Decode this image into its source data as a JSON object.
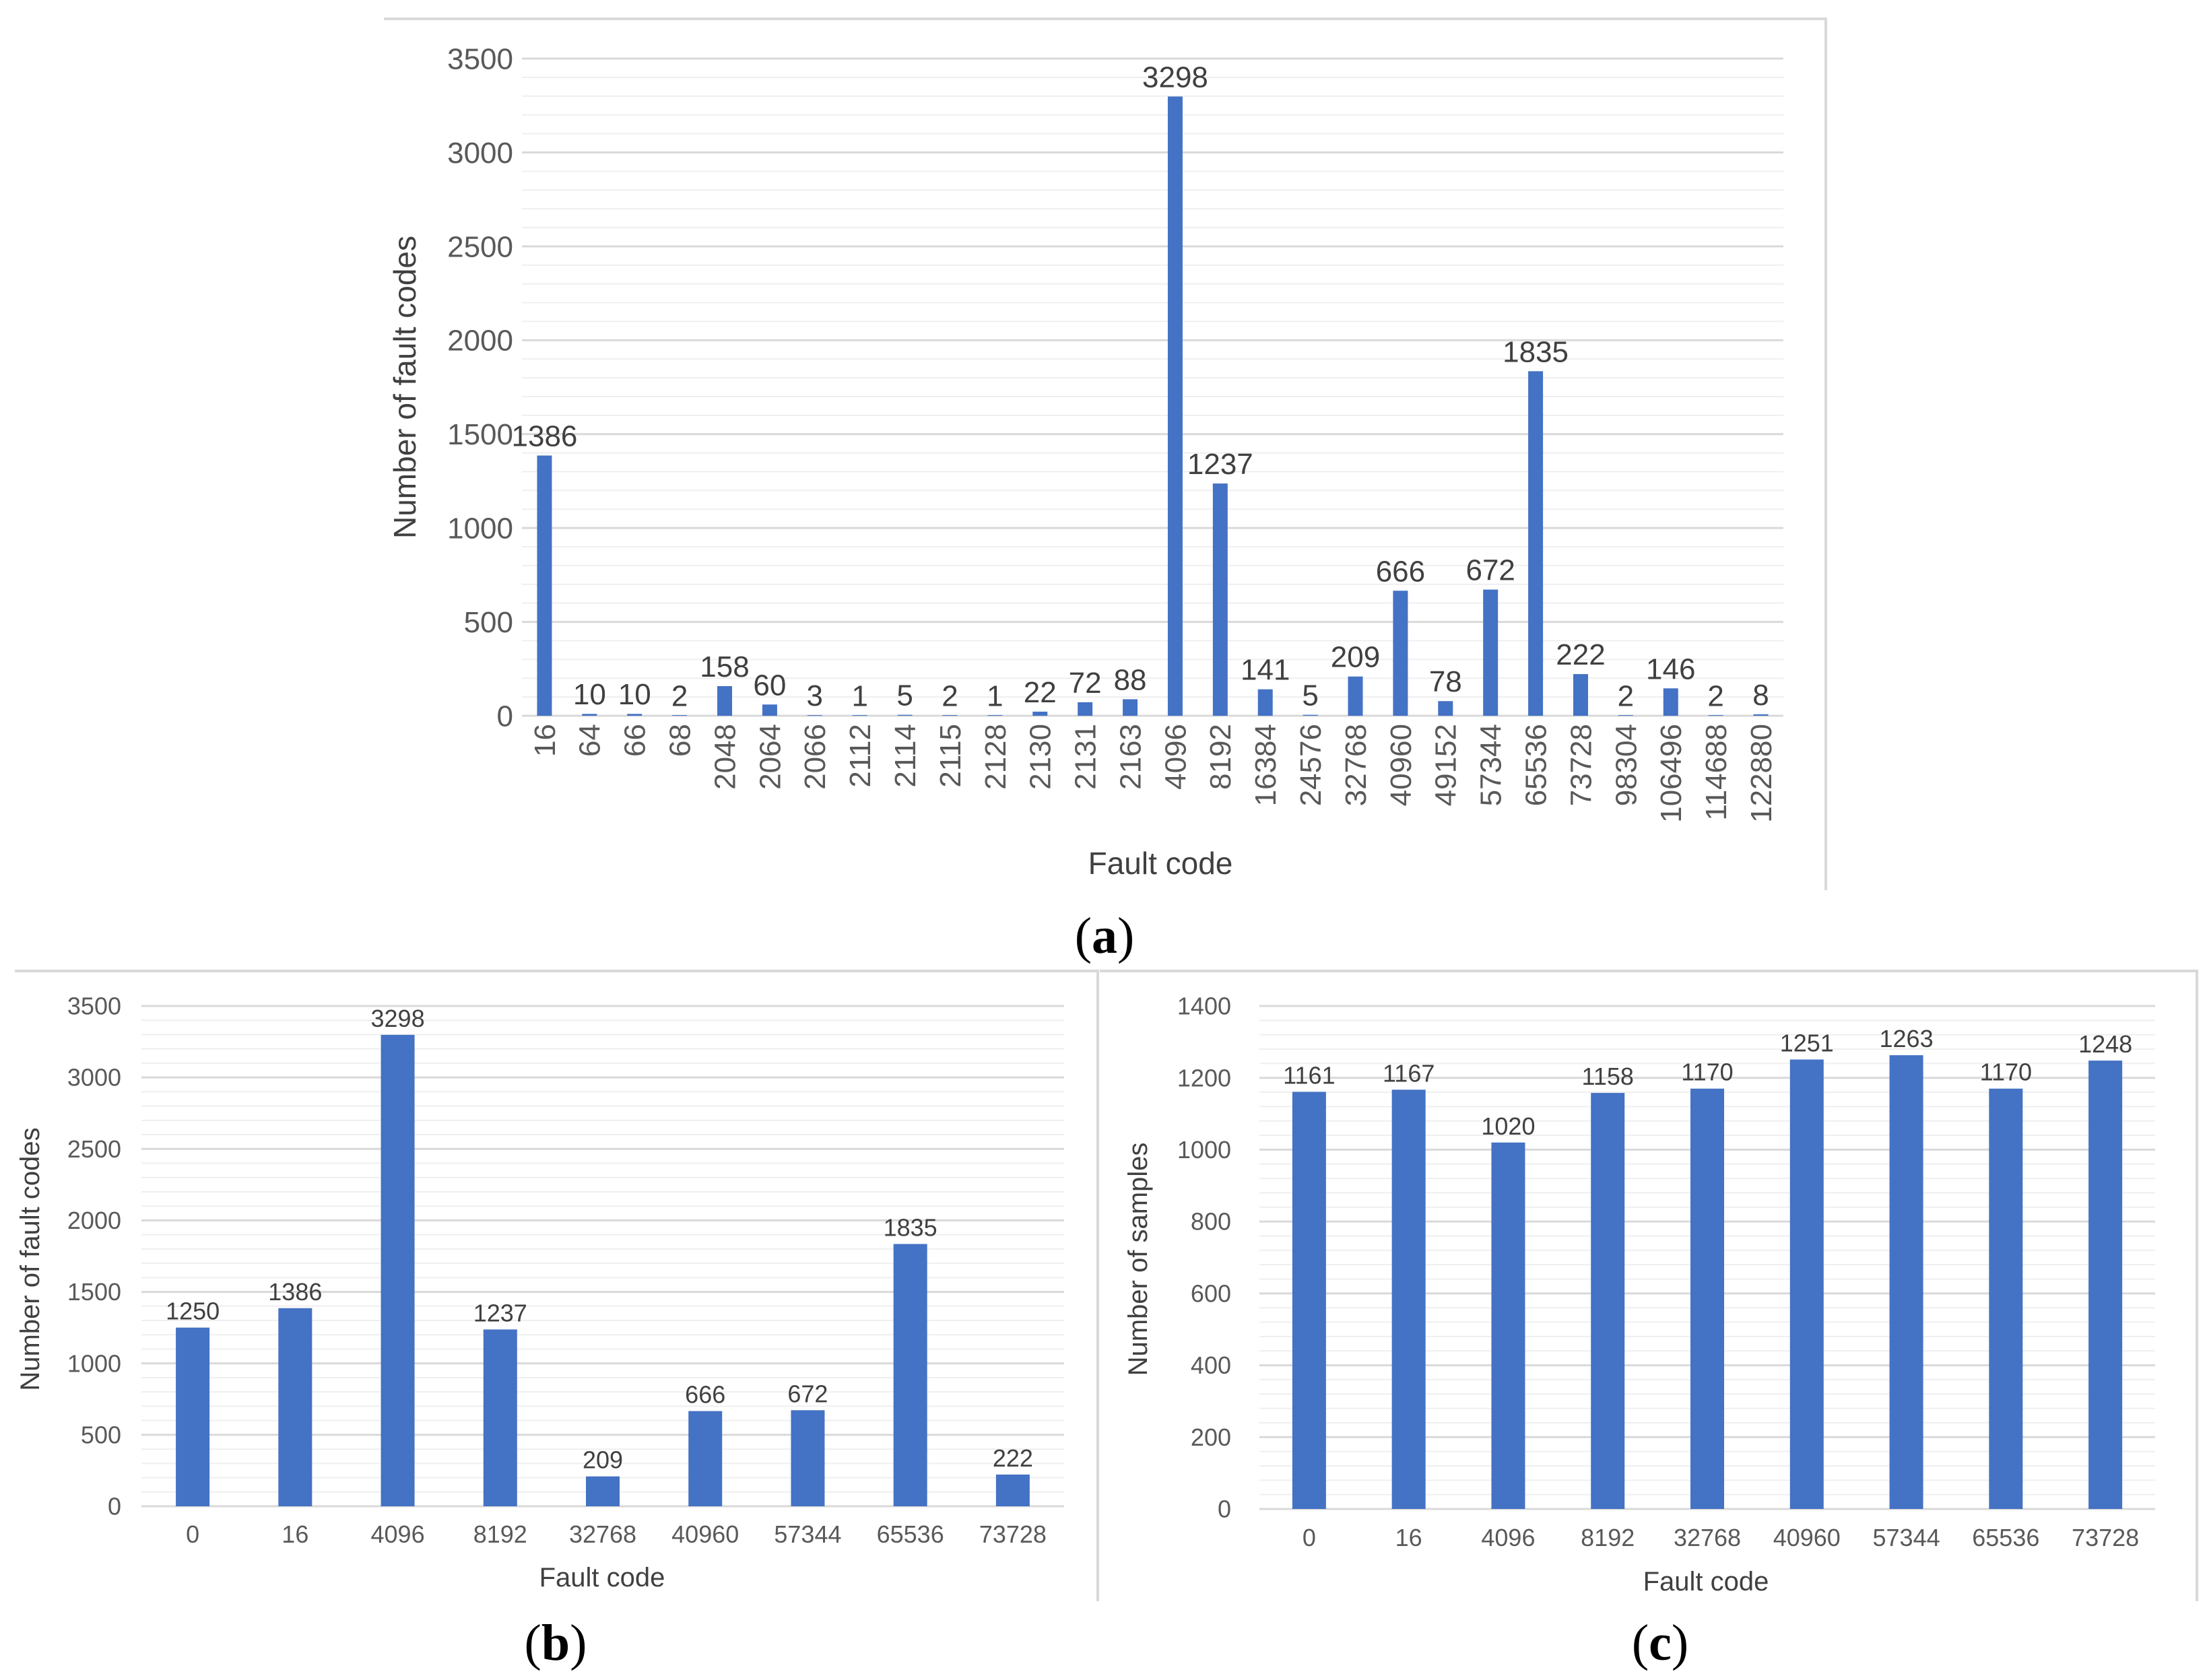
{
  "colors": {
    "bar": "#4472C4",
    "grid": "#D9D9D9",
    "minor_grid": "#EFEFEF",
    "text": "#595959",
    "frame": "#D9D9D9"
  },
  "panels": {
    "a": {
      "open": "(",
      "letter": "a",
      "close": ")"
    },
    "b": {
      "open": "(",
      "letter": "b",
      "close": ")"
    },
    "c": {
      "open": "(",
      "letter": "c",
      "close": ")"
    }
  },
  "chart_data": [
    {
      "id": "a",
      "type": "bar",
      "title": "",
      "xlabel": "Fault code",
      "ylabel": "Number of fault codes",
      "ylim": [
        0,
        3500
      ],
      "yticks": [
        0,
        500,
        1000,
        1500,
        2000,
        2500,
        3000,
        3500
      ],
      "grid": true,
      "categories": [
        "16",
        "64",
        "66",
        "68",
        "2048",
        "2064",
        "2066",
        "2112",
        "2114",
        "2115",
        "2128",
        "2130",
        "2131",
        "2163",
        "4096",
        "8192",
        "16384",
        "24576",
        "32768",
        "40960",
        "49152",
        "57344",
        "65536",
        "73728",
        "98304",
        "106496",
        "114688",
        "122880"
      ],
      "values": [
        1386,
        10,
        10,
        2,
        158,
        60,
        3,
        1,
        5,
        2,
        1,
        22,
        72,
        88,
        3298,
        1237,
        141,
        5,
        209,
        666,
        78,
        672,
        1835,
        222,
        2,
        146,
        2,
        8
      ]
    },
    {
      "id": "b",
      "type": "bar",
      "title": "",
      "xlabel": "Fault code",
      "ylabel": "Number of fault codes",
      "ylim": [
        0,
        3500
      ],
      "yticks": [
        0,
        500,
        1000,
        1500,
        2000,
        2500,
        3000,
        3500
      ],
      "grid": true,
      "categories": [
        "0",
        "16",
        "4096",
        "8192",
        "32768",
        "40960",
        "57344",
        "65536",
        "73728"
      ],
      "values": [
        1250,
        1386,
        3298,
        1237,
        209,
        666,
        672,
        1835,
        222
      ]
    },
    {
      "id": "c",
      "type": "bar",
      "title": "",
      "xlabel": "Fault code",
      "ylabel": "Number of samples",
      "ylim": [
        0,
        1400
      ],
      "yticks": [
        0,
        200,
        400,
        600,
        800,
        1000,
        1200,
        1400
      ],
      "grid": true,
      "categories": [
        "0",
        "16",
        "4096",
        "8192",
        "32768",
        "40960",
        "57344",
        "65536",
        "73728"
      ],
      "values": [
        1161,
        1167,
        1020,
        1158,
        1170,
        1251,
        1263,
        1170,
        1248
      ]
    }
  ]
}
